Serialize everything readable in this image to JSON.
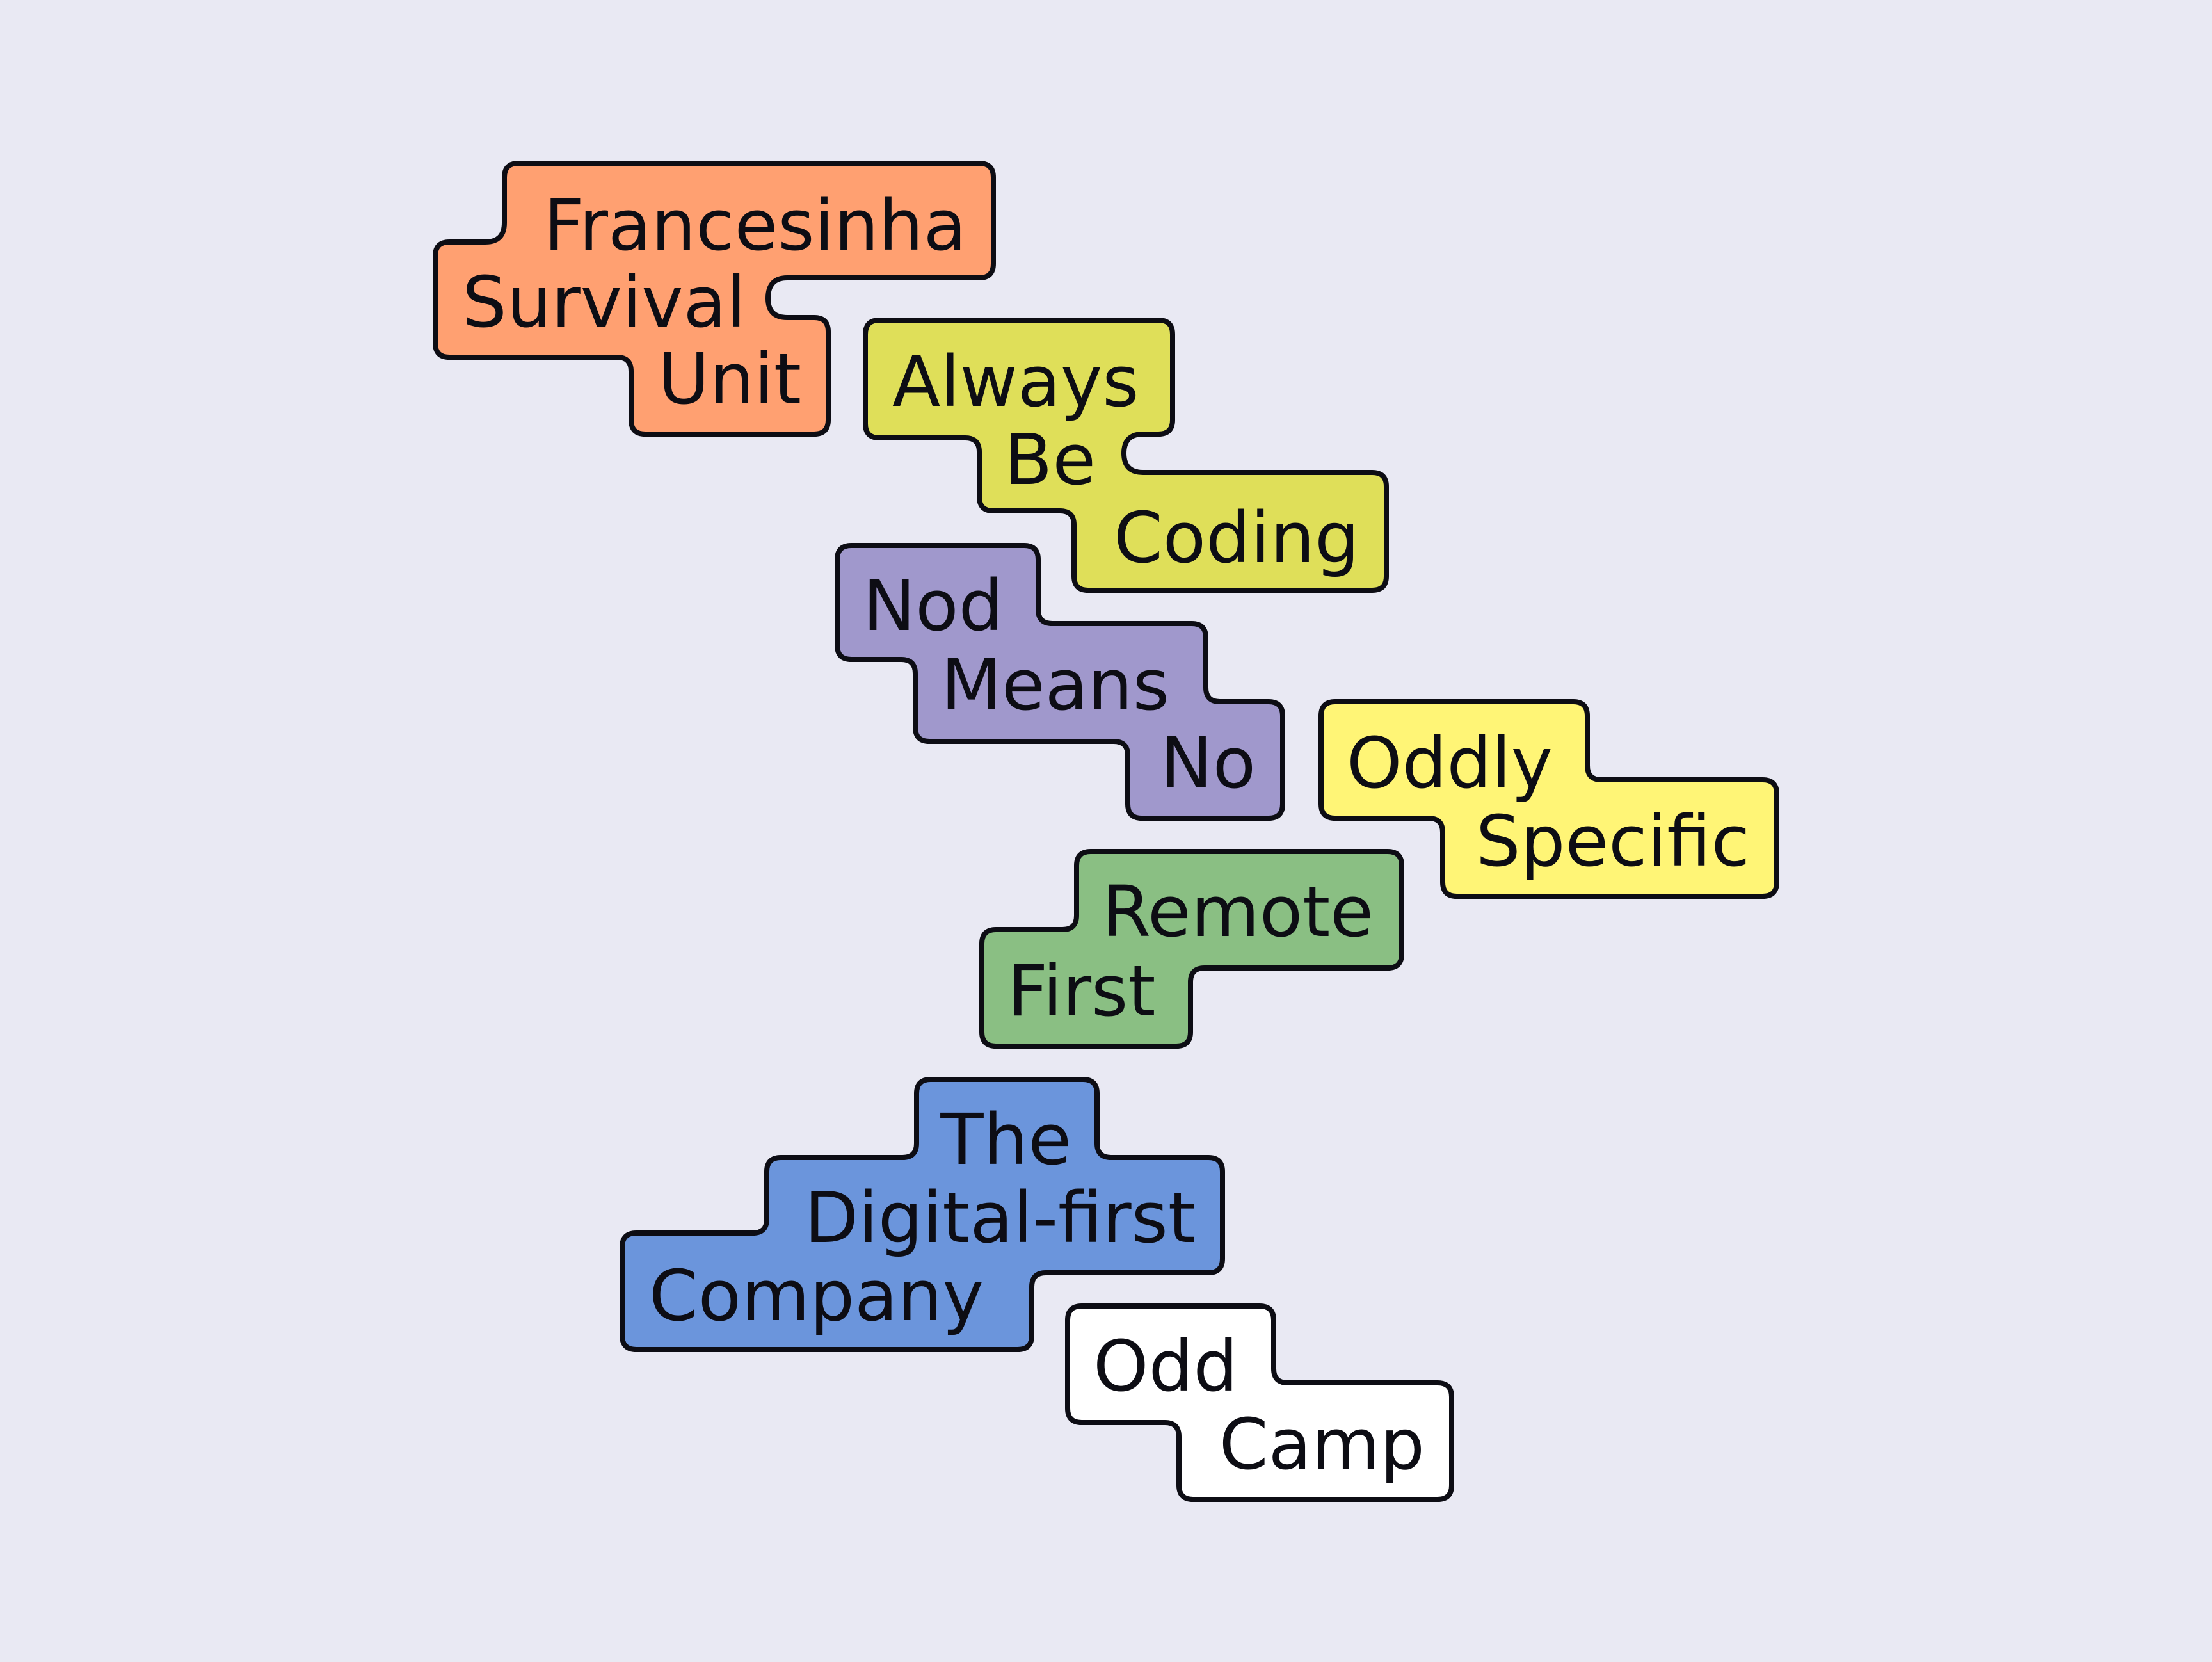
{
  "background_color": "#e9e9f3",
  "outline_color": "#0d0d14",
  "labels": [
    {
      "id": "francesinha-survival-unit",
      "color": "#ffa071",
      "lines": [
        "Francesinha",
        "Survival",
        "Unit"
      ]
    },
    {
      "id": "always-be-coding",
      "color": "#dfdf59",
      "lines": [
        "Always",
        "Be",
        "Coding"
      ]
    },
    {
      "id": "nod-means-no",
      "color": "#a098cc",
      "lines": [
        "Nod",
        "Means",
        "No"
      ]
    },
    {
      "id": "oddly-specific",
      "color": "#fff576",
      "lines": [
        "Oddly",
        "Specific"
      ]
    },
    {
      "id": "remote-first",
      "color": "#8abf83",
      "lines": [
        "Remote",
        "First"
      ]
    },
    {
      "id": "the-digital-first-company",
      "color": "#6b95dc",
      "lines": [
        "The",
        "Digital-first",
        "Company"
      ]
    },
    {
      "id": "odd-camp",
      "color": "#ffffff",
      "lines": [
        "Odd",
        "Camp"
      ]
    }
  ]
}
